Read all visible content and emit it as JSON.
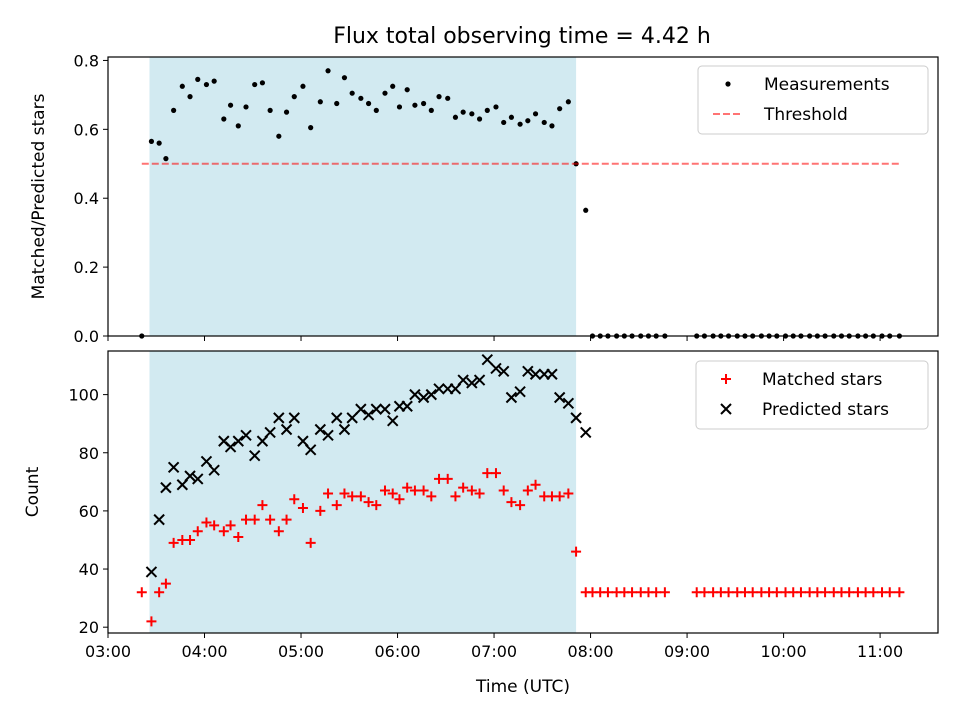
{
  "title": "Flux total observing time = 4.42 h",
  "colors": {
    "band": "#add8e6",
    "threshold": "#ff0000",
    "matched": "#ff0000",
    "predicted": "#000000",
    "measurement": "#000000"
  },
  "chart_data": [
    {
      "type": "scatter",
      "ylabel": "Matched/Predicted stars",
      "xlim": [
        3.0,
        11.6
      ],
      "ylim": [
        0.0,
        0.81
      ],
      "yticks": [
        "0.0",
        "0.2",
        "0.4",
        "0.6",
        "0.8"
      ],
      "ytick_values": [
        0.0,
        0.2,
        0.4,
        0.6,
        0.8
      ],
      "shaded_range": [
        3.43,
        7.85
      ],
      "legend_position": "upper right",
      "series": [
        {
          "name": "Measurements",
          "marker": "dot",
          "x": [
            3.35,
            3.45,
            3.53,
            3.6,
            3.68,
            3.77,
            3.85,
            3.93,
            4.02,
            4.1,
            4.2,
            4.27,
            4.35,
            4.43,
            4.52,
            4.6,
            4.68,
            4.77,
            4.85,
            4.93,
            5.02,
            5.1,
            5.2,
            5.28,
            5.37,
            5.45,
            5.53,
            5.62,
            5.7,
            5.78,
            5.87,
            5.95,
            6.02,
            6.1,
            6.18,
            6.27,
            6.35,
            6.43,
            6.52,
            6.6,
            6.68,
            6.77,
            6.85,
            6.93,
            7.02,
            7.1,
            7.18,
            7.27,
            7.35,
            7.43,
            7.52,
            7.6,
            7.68,
            7.77,
            7.85,
            7.95,
            8.02,
            8.1,
            8.18,
            8.27,
            8.35,
            8.43,
            8.52,
            8.6,
            8.68,
            8.77,
            9.1,
            9.18,
            9.27,
            9.35,
            9.43,
            9.52,
            9.6,
            9.68,
            9.77,
            9.85,
            9.93,
            10.02,
            10.1,
            10.18,
            10.27,
            10.35,
            10.43,
            10.52,
            10.6,
            10.68,
            10.77,
            10.85,
            10.93,
            11.02,
            11.1,
            11.2
          ],
          "y": [
            0.0,
            0.565,
            0.56,
            0.515,
            0.655,
            0.725,
            0.695,
            0.745,
            0.73,
            0.74,
            0.63,
            0.67,
            0.61,
            0.665,
            0.73,
            0.735,
            0.655,
            0.58,
            0.65,
            0.695,
            0.725,
            0.605,
            0.68,
            0.77,
            0.675,
            0.75,
            0.705,
            0.69,
            0.675,
            0.655,
            0.705,
            0.725,
            0.665,
            0.715,
            0.67,
            0.675,
            0.655,
            0.695,
            0.69,
            0.635,
            0.65,
            0.645,
            0.63,
            0.655,
            0.665,
            0.62,
            0.635,
            0.615,
            0.625,
            0.645,
            0.62,
            0.61,
            0.66,
            0.68,
            0.5,
            0.365,
            0.0,
            0.0,
            0.0,
            0.0,
            0.0,
            0.0,
            0.0,
            0.0,
            0.0,
            0.0,
            0.0,
            0.0,
            0.0,
            0.0,
            0.0,
            0.0,
            0.0,
            0.0,
            0.0,
            0.0,
            0.0,
            0.0,
            0.0,
            0.0,
            0.0,
            0.0,
            0.0,
            0.0,
            0.0,
            0.0,
            0.0,
            0.0,
            0.0,
            0.0,
            0.0,
            0.0
          ]
        },
        {
          "name": "Threshold",
          "marker": "dashed-line",
          "x": [
            3.35,
            11.2
          ],
          "y": [
            0.5,
            0.5
          ]
        }
      ]
    },
    {
      "type": "scatter",
      "ylabel": "Count",
      "xlabel": "Time (UTC)",
      "xlim": [
        3.0,
        11.6
      ],
      "ylim": [
        18.0,
        115.0
      ],
      "yticks": [
        "20",
        "40",
        "60",
        "80",
        "100"
      ],
      "ytick_values": [
        20,
        40,
        60,
        80,
        100
      ],
      "xticks": [
        "03:00",
        "04:00",
        "05:00",
        "06:00",
        "07:00",
        "08:00",
        "09:00",
        "10:00",
        "11:00"
      ],
      "xtick_values": [
        3,
        4,
        5,
        6,
        7,
        8,
        9,
        10,
        11
      ],
      "shaded_range": [
        3.43,
        7.85
      ],
      "legend_position": "upper right",
      "series": [
        {
          "name": "Matched stars",
          "marker": "plus",
          "x": [
            3.35,
            3.45,
            3.53,
            3.6,
            3.68,
            3.77,
            3.85,
            3.93,
            4.02,
            4.1,
            4.2,
            4.27,
            4.35,
            4.43,
            4.52,
            4.6,
            4.68,
            4.77,
            4.85,
            4.93,
            5.02,
            5.1,
            5.2,
            5.28,
            5.37,
            5.45,
            5.53,
            5.62,
            5.7,
            5.78,
            5.87,
            5.95,
            6.02,
            6.1,
            6.18,
            6.27,
            6.35,
            6.43,
            6.52,
            6.6,
            6.68,
            6.77,
            6.85,
            6.93,
            7.02,
            7.1,
            7.18,
            7.27,
            7.35,
            7.43,
            7.52,
            7.6,
            7.68,
            7.77,
            7.85,
            7.95,
            8.02,
            8.1,
            8.18,
            8.27,
            8.35,
            8.43,
            8.52,
            8.6,
            8.68,
            8.77,
            9.1,
            9.18,
            9.27,
            9.35,
            9.43,
            9.52,
            9.6,
            9.68,
            9.77,
            9.85,
            9.93,
            10.02,
            10.1,
            10.18,
            10.27,
            10.35,
            10.43,
            10.52,
            10.6,
            10.68,
            10.77,
            10.85,
            10.93,
            11.02,
            11.1,
            11.2
          ],
          "y": [
            32,
            22,
            32,
            35,
            49,
            50,
            50,
            53,
            56,
            55,
            53,
            55,
            51,
            57,
            57,
            62,
            57,
            53,
            57,
            64,
            61,
            49,
            60,
            66,
            62,
            66,
            65,
            65,
            63,
            62,
            67,
            66,
            64,
            68,
            67,
            67,
            65,
            71,
            71,
            65,
            68,
            67,
            66,
            73,
            73,
            67,
            63,
            62,
            67,
            69,
            65,
            65,
            65,
            66,
            46,
            32,
            32,
            32,
            32,
            32,
            32,
            32,
            32,
            32,
            32,
            32,
            32,
            32,
            32,
            32,
            32,
            32,
            32,
            32,
            32,
            32,
            32,
            32,
            32,
            32,
            32,
            32,
            32,
            32,
            32,
            32,
            32,
            32,
            32,
            32,
            32,
            32
          ]
        },
        {
          "name": "Predicted stars",
          "marker": "x",
          "x": [
            3.45,
            3.53,
            3.6,
            3.68,
            3.77,
            3.85,
            3.93,
            4.02,
            4.1,
            4.2,
            4.27,
            4.35,
            4.43,
            4.52,
            4.6,
            4.68,
            4.77,
            4.85,
            4.93,
            5.02,
            5.1,
            5.2,
            5.28,
            5.37,
            5.45,
            5.53,
            5.62,
            5.7,
            5.78,
            5.87,
            5.95,
            6.02,
            6.1,
            6.18,
            6.27,
            6.35,
            6.43,
            6.52,
            6.6,
            6.68,
            6.77,
            6.85,
            6.93,
            7.02,
            7.1,
            7.18,
            7.27,
            7.35,
            7.43,
            7.52,
            7.6,
            7.68,
            7.77,
            7.85,
            7.95
          ],
          "y": [
            39,
            57,
            68,
            75,
            69,
            72,
            71,
            77,
            74,
            84,
            82,
            84,
            86,
            79,
            84,
            87,
            92,
            88,
            92,
            84,
            81,
            88,
            86,
            92,
            88,
            92,
            95,
            93,
            95,
            95,
            91,
            96,
            96,
            100,
            99,
            100,
            102,
            102,
            102,
            105,
            104,
            105,
            112,
            109,
            108,
            99,
            101,
            108,
            107,
            107,
            107,
            99,
            97,
            92,
            87
          ]
        }
      ]
    }
  ]
}
